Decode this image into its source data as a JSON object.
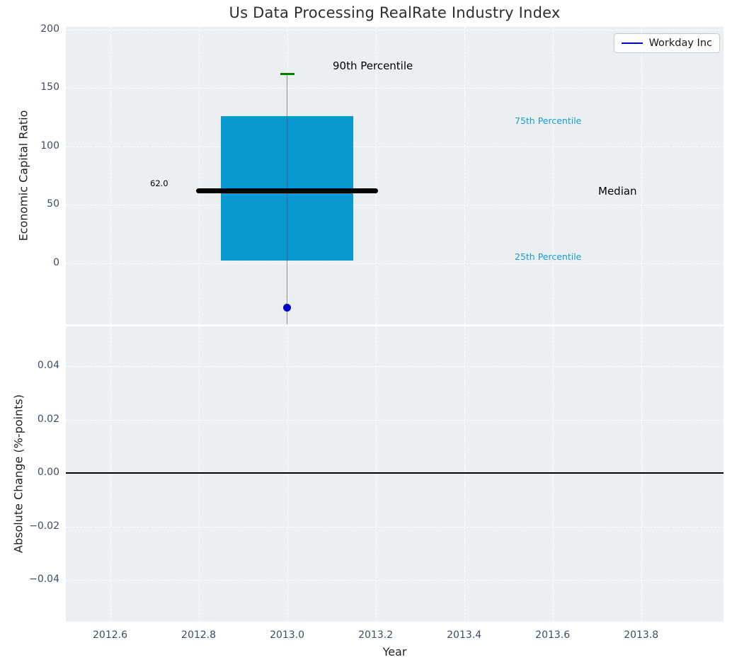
{
  "title": "Us Data Processing RealRate Industry Index",
  "legend": {
    "label": "Workday Inc"
  },
  "colors": {
    "background": "#eceff1",
    "grid": "#ffffff",
    "box_fill": "#0899d0",
    "median_line": "#000000",
    "p90_cap": "#008000",
    "whisker": "#4a4a4a",
    "point": "#0000cc",
    "legend_line": "#0000cc",
    "tick_label": "#3e4d63",
    "axis_label": "#1f1f1f",
    "title": "#2e2e2e",
    "percentile_label": "#1b9ad2",
    "zero_line": "#000000"
  },
  "x_axis": {
    "label": "Year",
    "tick_values": [
      2012.6,
      2012.8,
      2013.0,
      2013.2,
      2013.4,
      2013.6,
      2013.8
    ],
    "tick_labels": [
      "2012.6",
      "2012.8",
      "2013.0",
      "2013.2",
      "2013.4",
      "2013.6",
      "2013.8"
    ],
    "xlim": [
      2012.5,
      2013.986
    ]
  },
  "chart_data": [
    {
      "type": "box",
      "title": "Us Data Processing RealRate Industry Index",
      "ylabel": "Economic Capital Ratio",
      "series": "Workday Inc",
      "x": 2013.0,
      "box": {
        "p90": 162,
        "q3": 126,
        "median": 62.0,
        "q1": 2,
        "company_point": -38
      },
      "median_value_label": "62.0",
      "labels": {
        "p90": "90th Percentile",
        "p75": "75th Percentile",
        "median": "Median",
        "p25": "25th Percentile"
      },
      "ytick_values": [
        0,
        50,
        100,
        150,
        200
      ],
      "ytick_labels": [
        "0",
        "50",
        "100",
        "150",
        "200"
      ],
      "ylim": [
        -52.4,
        202.4
      ],
      "box_half_width": 0.15,
      "median_half_width": 0.205,
      "grid": "dashed-white",
      "legend_position": "upper right"
    },
    {
      "type": "line",
      "ylabel": "Absolute Change (%-points)",
      "xlabel": "Year",
      "ytick_values": [
        0.04,
        0.02,
        0.0,
        -0.02,
        -0.04
      ],
      "ytick_labels": [
        "0.04",
        "0.02",
        "0.00",
        "−0.02",
        "−0.04"
      ],
      "ylim": [
        -0.0556,
        0.0549
      ],
      "zero_line_y": 0.0,
      "grid": "dashed-white"
    }
  ]
}
